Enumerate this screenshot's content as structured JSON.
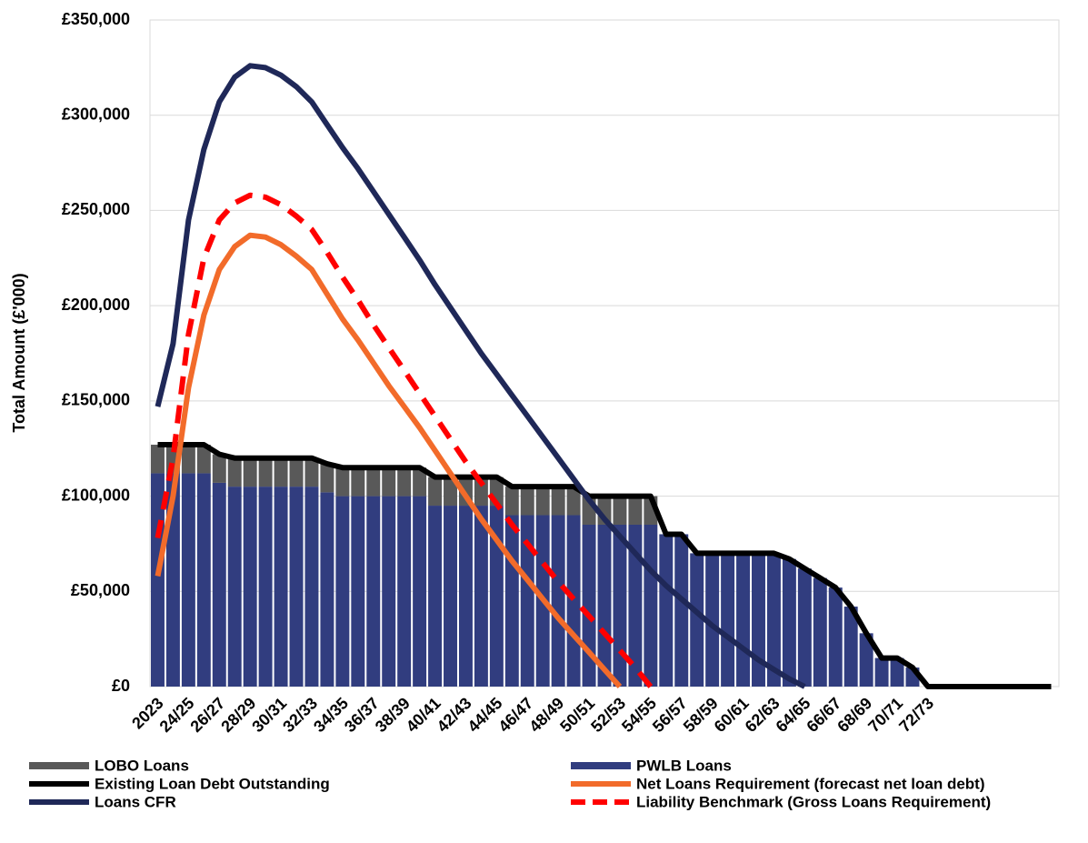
{
  "chart_data": {
    "type": "bar",
    "y_label": "Total Amount (£'000)",
    "categories": [
      "2023",
      null,
      "24/25",
      null,
      "26/27",
      null,
      "28/29",
      null,
      "30/31",
      null,
      "32/33",
      null,
      "34/35",
      null,
      "36/37",
      null,
      "38/39",
      null,
      "40/41",
      null,
      "42/43",
      null,
      "44/45",
      null,
      "46/47",
      null,
      "48/49",
      null,
      "50/51",
      null,
      "52/53",
      null,
      "54/55",
      null,
      "56/57",
      null,
      "58/59",
      null,
      "60/61",
      null,
      "62/63",
      null,
      "64/65",
      null,
      "66/67",
      null,
      "68/69",
      null,
      "70/71",
      null,
      "72/73",
      null,
      null,
      null,
      null,
      null,
      null,
      null,
      null
    ],
    "ylim": [
      0,
      350000
    ],
    "yticks": [
      {
        "value": 0,
        "label": "£0"
      },
      {
        "value": 50000,
        "label": "£50,000"
      },
      {
        "value": 100000,
        "label": "£100,000"
      },
      {
        "value": 150000,
        "label": "£150,000"
      },
      {
        "value": 200000,
        "label": "£200,000"
      },
      {
        "value": 250000,
        "label": "£250,000"
      },
      {
        "value": 300000,
        "label": "£300,000"
      },
      {
        "value": 350000,
        "label": "£350,000"
      }
    ],
    "grid": true,
    "series": [
      {
        "name": "LOBO Loans",
        "type": "bar",
        "color": "#595959",
        "values": [
          15000,
          15000,
          15000,
          15000,
          15000,
          15000,
          15000,
          15000,
          15000,
          15000,
          15000,
          15000,
          15000,
          15000,
          15000,
          15000,
          15000,
          15000,
          15000,
          15000,
          15000,
          15000,
          15000,
          15000,
          15000,
          15000,
          15000,
          15000,
          15000,
          15000,
          15000,
          15000,
          15000,
          0,
          0,
          0,
          0,
          0,
          0,
          0,
          0,
          0,
          0,
          0,
          0,
          0,
          0,
          0,
          0,
          0,
          0,
          0,
          0,
          0,
          0,
          0,
          0,
          0,
          0
        ]
      },
      {
        "name": "PWLB Loans",
        "type": "bar",
        "color": "#313d7f",
        "values": [
          112000,
          112000,
          112000,
          112000,
          107000,
          105000,
          105000,
          105000,
          105000,
          105000,
          105000,
          102000,
          100000,
          100000,
          100000,
          100000,
          100000,
          100000,
          95000,
          95000,
          95000,
          95000,
          95000,
          90000,
          90000,
          90000,
          90000,
          90000,
          85000,
          85000,
          85000,
          85000,
          85000,
          80000,
          80000,
          70000,
          70000,
          70000,
          70000,
          70000,
          70000,
          67000,
          62000,
          57000,
          52000,
          42000,
          28000,
          15000,
          15000,
          10000,
          0,
          0,
          0,
          0,
          0,
          0,
          0,
          0,
          0
        ]
      },
      {
        "name": "Existing Loan Debt Outstanding",
        "type": "line",
        "color": "#000000",
        "dashed": false,
        "values": [
          127000,
          127000,
          127000,
          127000,
          122000,
          120000,
          120000,
          120000,
          120000,
          120000,
          120000,
          117000,
          115000,
          115000,
          115000,
          115000,
          115000,
          115000,
          110000,
          110000,
          110000,
          110000,
          110000,
          105000,
          105000,
          105000,
          105000,
          105000,
          100000,
          100000,
          100000,
          100000,
          100000,
          80000,
          80000,
          70000,
          70000,
          70000,
          70000,
          70000,
          70000,
          67000,
          62000,
          57000,
          52000,
          42000,
          28000,
          15000,
          15000,
          10000,
          0,
          0,
          0,
          0,
          0,
          0,
          0,
          0,
          0
        ]
      },
      {
        "name": "Net Loans Requirement (forecast net loan debt)",
        "type": "line",
        "color": "#f26b2a",
        "dashed": false,
        "values": [
          58000,
          100000,
          157000,
          195000,
          219000,
          231000,
          237000,
          236000,
          232000,
          226000,
          219000,
          206000,
          193000,
          182000,
          170000,
          158000,
          147000,
          136000,
          124000,
          112000,
          100000,
          88000,
          77000,
          66000,
          56000,
          46000,
          36000,
          27000,
          18000,
          9000,
          0,
          null,
          null,
          null,
          null,
          null,
          null,
          null,
          null,
          null,
          null,
          null,
          null,
          null,
          null,
          null,
          null,
          null,
          null,
          null,
          null,
          null,
          null,
          null,
          null,
          null,
          null,
          null,
          null
        ]
      },
      {
        "name": "Loans CFR",
        "type": "line",
        "color": "#1f2858",
        "dashed": false,
        "values": [
          147000,
          180000,
          245000,
          282000,
          307000,
          320000,
          326000,
          325000,
          321000,
          315000,
          307000,
          295000,
          283000,
          272000,
          260000,
          248000,
          236000,
          224000,
          211000,
          199000,
          187000,
          175000,
          164000,
          153000,
          142000,
          131000,
          120000,
          109000,
          98000,
          88000,
          79000,
          70000,
          61000,
          53000,
          46000,
          39000,
          32000,
          26000,
          20000,
          14000,
          9000,
          4000,
          0,
          null,
          null,
          null,
          null,
          null,
          null,
          null,
          null,
          null,
          null,
          null,
          null,
          null,
          null,
          null,
          null
        ]
      },
      {
        "name": "Liability Benchmark (Gross Loans Requirement)",
        "type": "line",
        "color": "#ff0000",
        "dashed": true,
        "values": [
          78000,
          120000,
          185000,
          225000,
          245000,
          254000,
          258000,
          257000,
          253000,
          247000,
          240000,
          228000,
          215000,
          203000,
          190000,
          178000,
          166000,
          154000,
          142000,
          130000,
          118000,
          107000,
          96000,
          85000,
          75000,
          65000,
          55000,
          46000,
          37000,
          28000,
          19000,
          10000,
          0,
          null,
          null,
          null,
          null,
          null,
          null,
          null,
          null,
          null,
          null,
          null,
          null,
          null,
          null,
          null,
          null,
          null,
          null,
          null,
          null,
          null,
          null,
          null,
          null,
          null,
          null
        ]
      }
    ]
  }
}
